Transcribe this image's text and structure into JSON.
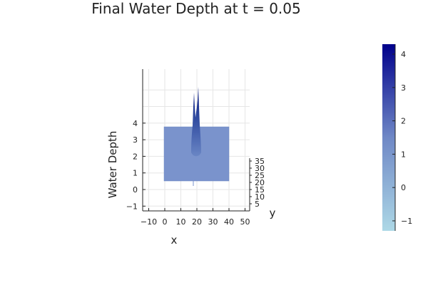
{
  "chart_data": {
    "type": "surface",
    "title": "Final Water Depth at t = 0.05",
    "xlabel": "x",
    "ylabel": "y",
    "zlabel": "Water Depth",
    "x_ticks": [
      "−10",
      "0",
      "10",
      "20",
      "30",
      "40",
      "50"
    ],
    "x_tick_values": [
      -10,
      0,
      10,
      20,
      30,
      40,
      50
    ],
    "xlim": [
      -13,
      53
    ],
    "y_ticks": [
      "5",
      "10",
      "15",
      "20",
      "25",
      "30",
      "35"
    ],
    "y_tick_values": [
      5,
      10,
      15,
      20,
      25,
      30,
      35
    ],
    "z_ticks": [
      "−1",
      "0",
      "1",
      "2",
      "3",
      "4"
    ],
    "z_tick_values": [
      -1,
      0,
      1,
      2,
      3,
      4
    ],
    "zlim": [
      -1.5,
      7.2
    ],
    "grid": true,
    "surface": {
      "domain_x": [
        0,
        40
      ],
      "domain_y": [
        0,
        40
      ],
      "base_depth_range": [
        0.5,
        3.8
      ],
      "peak": {
        "x": 20,
        "y": 20,
        "z_max": 6.1
      }
    },
    "colorbar": {
      "ticks": [
        "−1",
        "0",
        "1",
        "2",
        "3",
        "4"
      ],
      "tick_values": [
        -1,
        0,
        1,
        2,
        3,
        4
      ],
      "range": [
        -1.3,
        4.3
      ],
      "colors": [
        "#add8e6",
        "#00008b"
      ]
    }
  }
}
